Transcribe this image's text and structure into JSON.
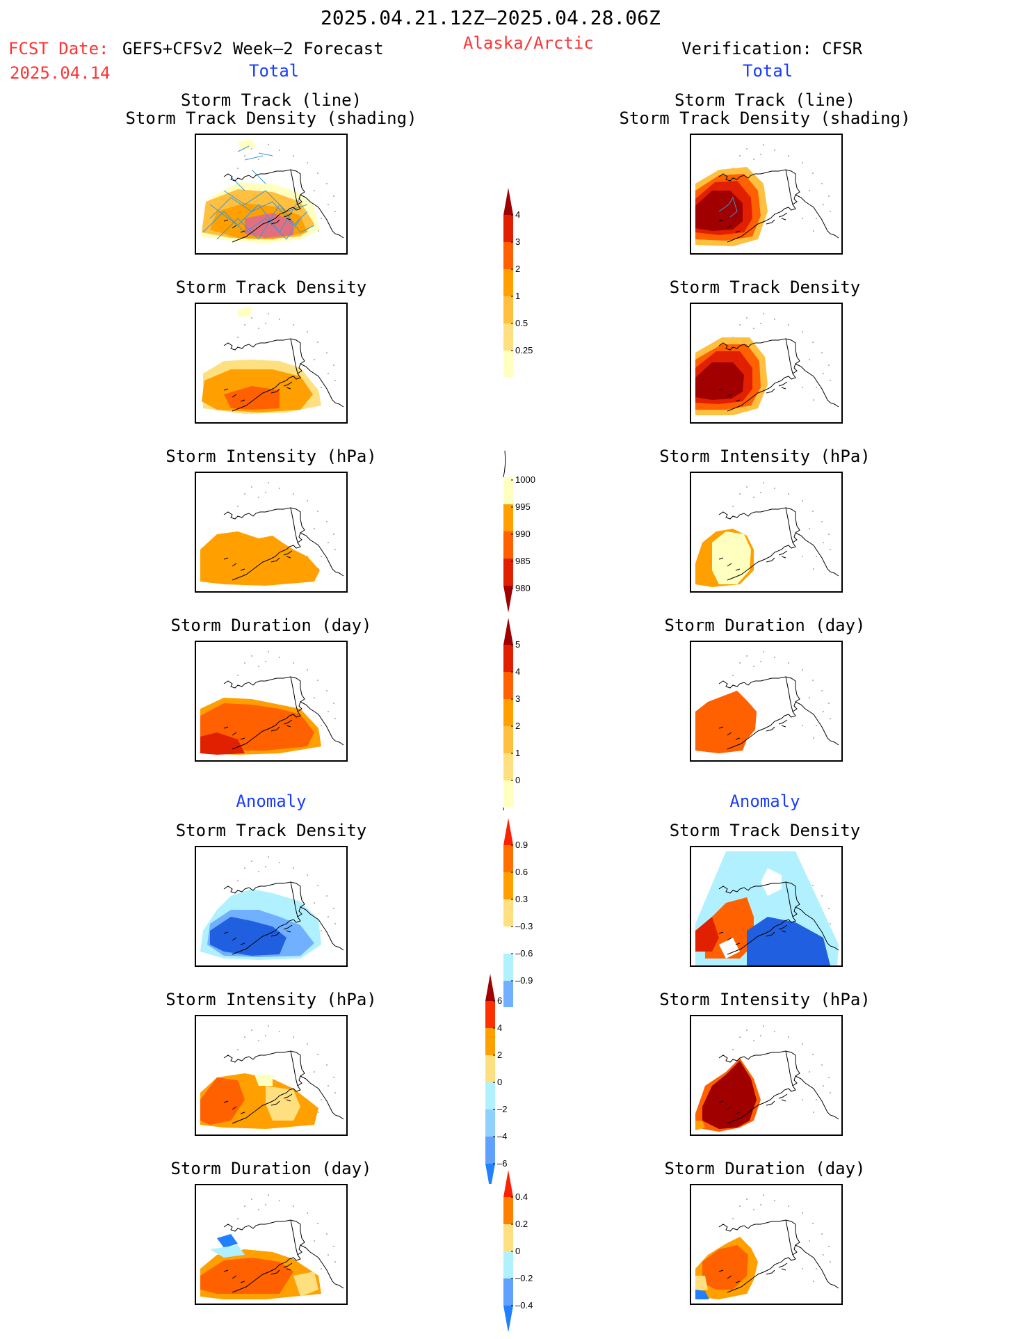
{
  "header": {
    "period": "2025.04.21.12Z–2025.04.28.06Z",
    "region": "Alaska/Arctic",
    "fcst_label": "FCST Date:",
    "fcst_model": "GEFS+CFSv2 Week–2 Forecast",
    "fcst_date": "2025.04.14",
    "verification": "Verification: CFSR",
    "left_total": "Total",
    "right_total": "Total",
    "left_anomaly": "Anomaly",
    "right_anomaly": "Anomaly"
  },
  "colors": {
    "title_red": "#ff3333",
    "title_blue": "#1a3cff",
    "track_line": "#3399dd"
  },
  "panels": {
    "track_line_title": "Storm Track (line)",
    "track_shading_title": "Storm Track Density (shading)",
    "density_title": "Storm Track Density",
    "intensity_title": "Storm Intensity (hPa)",
    "duration_title": "Storm Duration (day)"
  },
  "chart_data": [
    {
      "type": "heatmap",
      "name": "colorbar-storm-track-density",
      "levels": [
        "0.25",
        "0.5",
        "1",
        "2",
        "3",
        "4"
      ],
      "colors": [
        "#ffffc0",
        "#ffe080",
        "#ffc040",
        "#ffa000",
        "#ff6000",
        "#e02000",
        "#a00000"
      ]
    },
    {
      "type": "heatmap",
      "name": "colorbar-storm-intensity",
      "levels": [
        "1000",
        "995",
        "990",
        "985",
        "980"
      ],
      "colors": [
        "#ffffc0",
        "#ffa000",
        "#ff6000",
        "#e02000",
        "#a00000"
      ]
    },
    {
      "type": "heatmap",
      "name": "colorbar-storm-duration",
      "levels": [
        "0",
        "1",
        "2",
        "3",
        "4",
        "5"
      ],
      "colors": [
        "#ffffc0",
        "#ffe080",
        "#ffc040",
        "#ffa000",
        "#ff6000",
        "#e02000",
        "#a00000"
      ]
    },
    {
      "type": "heatmap",
      "name": "colorbar-density-anomaly",
      "levels": [
        "0.9",
        "0.6",
        "0.3",
        "–0.3",
        "–0.6",
        "–0.9"
      ],
      "colors": [
        "#ff2000",
        "#ff7000",
        "#ffa000",
        "#ffe080",
        "#ffffff",
        "#b0f0ff",
        "#70b0ff",
        "#2060e0"
      ]
    },
    {
      "type": "heatmap",
      "name": "colorbar-intensity-anomaly",
      "levels": [
        "6",
        "4",
        "2",
        "0",
        "–2",
        "–4",
        "–6"
      ],
      "colors": [
        "#a00000",
        "#ff3000",
        "#ffa000",
        "#ffe080",
        "#b0f0ff",
        "#90d0ff",
        "#60a0ff",
        "#2080ff"
      ]
    },
    {
      "type": "heatmap",
      "name": "colorbar-duration-anomaly",
      "levels": [
        "0.4",
        "0.2",
        "0",
        "–0.2",
        "–0.4"
      ],
      "colors": [
        "#ff2000",
        "#ff8000",
        "#ffe080",
        "#b0f0ff",
        "#60a0ff",
        "#2080ff"
      ]
    }
  ]
}
